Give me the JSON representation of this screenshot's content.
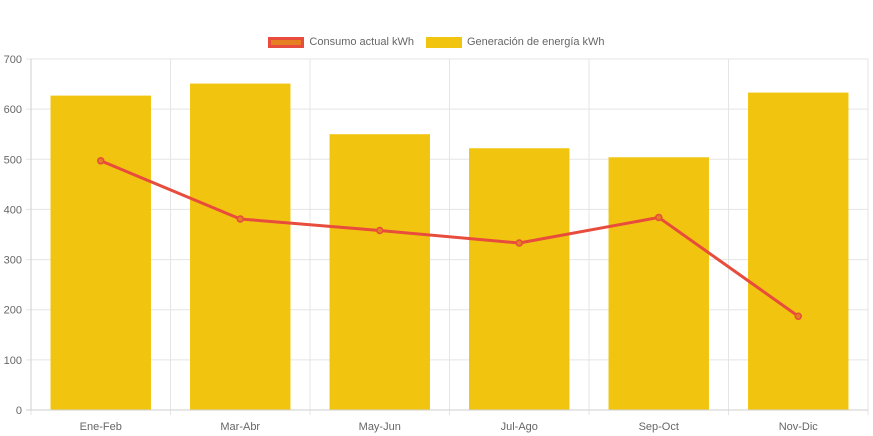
{
  "chart_data": {
    "type": "bar",
    "categories": [
      "Ene-Feb",
      "Mar-Abr",
      "May-Jun",
      "Jul-Ago",
      "Sep-Oct",
      "Nov-Dic"
    ],
    "series": [
      {
        "name": "Consumo actual kWh",
        "type": "line",
        "color": "#e74c3c",
        "fill": "#e67e22",
        "values": [
          497,
          381,
          358,
          333,
          384,
          187
        ]
      },
      {
        "name": "Generación de energía kWh",
        "type": "bar",
        "color": "#f1c40f",
        "values": [
          627,
          651,
          550,
          522,
          504,
          633
        ]
      }
    ],
    "ylim": [
      0,
      700
    ],
    "yticks": [
      0,
      100,
      200,
      300,
      400,
      500,
      600,
      700
    ],
    "grid": true,
    "legend_position": "top"
  }
}
